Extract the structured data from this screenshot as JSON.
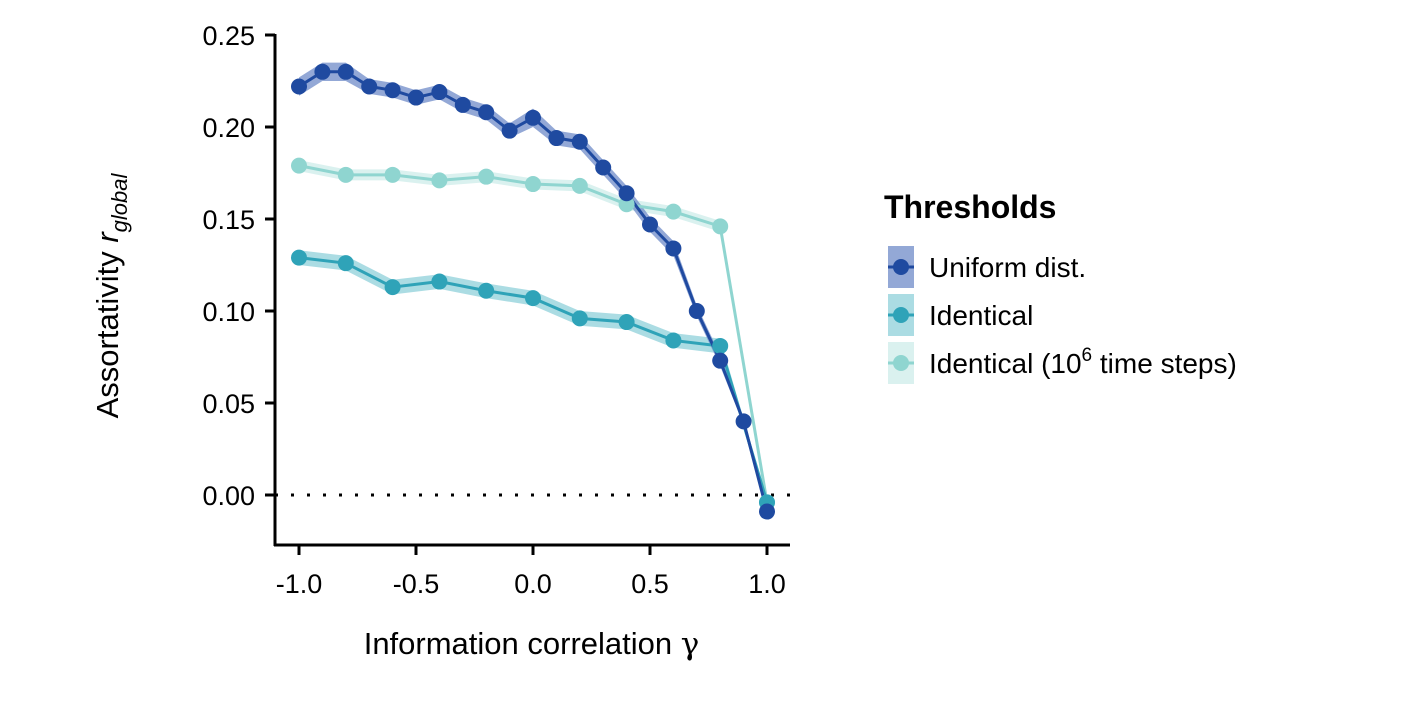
{
  "chart_data": {
    "type": "line",
    "xlabel": {
      "prefix": "Information correlation ",
      "symbol": "γ"
    },
    "ylabel": {
      "prefix": "Assortativity ",
      "symbol": "r",
      "subscript": "global"
    },
    "xlim": [
      -1.1,
      1.1
    ],
    "ylim": [
      -0.027,
      0.25
    ],
    "xticks": [
      -1.0,
      -0.5,
      0.0,
      0.5,
      1.0
    ],
    "xtick_labels": [
      "-1.0",
      "-0.5",
      "0.0",
      "0.5",
      "1.0"
    ],
    "yticks": [
      0.0,
      0.05,
      0.1,
      0.15,
      0.2,
      0.25
    ],
    "ytick_labels": [
      "0.00",
      "0.05",
      "0.10",
      "0.15",
      "0.20",
      "0.25"
    ],
    "reference_line": {
      "y": 0,
      "style": "dotted"
    },
    "grid": false,
    "legend": {
      "title": "Thresholds",
      "position": "right"
    },
    "series": [
      {
        "name": "Uniform dist.",
        "color": "#1f4aa0",
        "ribbon_color": "#6f8bc8",
        "x": [
          -1.0,
          -0.9,
          -0.8,
          -0.7,
          -0.6,
          -0.5,
          -0.4,
          -0.3,
          -0.2,
          -0.1,
          0.0,
          0.1,
          0.2,
          0.3,
          0.4,
          0.5,
          0.6,
          0.7,
          0.8,
          0.9,
          1.0
        ],
        "y": [
          0.222,
          0.23,
          0.23,
          0.222,
          0.22,
          0.216,
          0.219,
          0.212,
          0.208,
          0.198,
          0.205,
          0.194,
          0.192,
          0.178,
          0.164,
          0.147,
          0.134,
          0.1,
          0.073,
          0.04,
          -0.009
        ],
        "ci": [
          0.005,
          0.005,
          0.005,
          0.004,
          0.004,
          0.004,
          0.004,
          0.004,
          0.004,
          0.004,
          0.005,
          0.004,
          0.004,
          0.004,
          0.004,
          0.004,
          0.004,
          0.003,
          0.003,
          0.002,
          0.002
        ]
      },
      {
        "name": "Identical",
        "color": "#2fa3b8",
        "ribbon_color": "#8fd0da",
        "x": [
          -1.0,
          -0.8,
          -0.6,
          -0.4,
          -0.2,
          0.0,
          0.2,
          0.4,
          0.6,
          0.8,
          1.0
        ],
        "y": [
          0.129,
          0.126,
          0.113,
          0.116,
          0.111,
          0.107,
          0.096,
          0.094,
          0.084,
          0.081,
          -0.004
        ],
        "ci": [
          0.004,
          0.004,
          0.004,
          0.004,
          0.004,
          0.004,
          0.004,
          0.004,
          0.004,
          0.004,
          0.002
        ]
      },
      {
        "name": "Identical (10⁶ time steps)",
        "name_parts": {
          "before": "Identical (10",
          "sup": "6",
          "after": " time steps)"
        },
        "color": "#8fd5d0",
        "ribbon_color": "#cdecea",
        "x": [
          -1.0,
          -0.8,
          -0.6,
          -0.4,
          -0.2,
          0.0,
          0.2,
          0.4,
          0.6,
          0.8,
          1.0
        ],
        "y": [
          0.179,
          0.174,
          0.174,
          0.171,
          0.173,
          0.169,
          0.168,
          0.158,
          0.154,
          0.146,
          -0.004
        ],
        "ci": [
          0.003,
          0.003,
          0.003,
          0.003,
          0.003,
          0.003,
          0.003,
          0.003,
          0.003,
          0.003,
          0.002
        ]
      }
    ]
  }
}
